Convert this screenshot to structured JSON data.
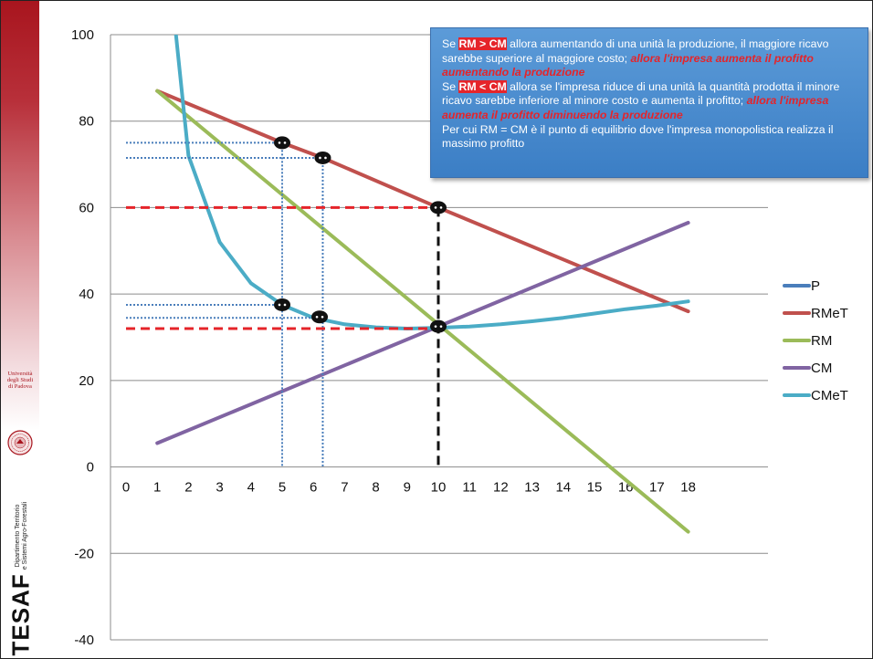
{
  "branding": {
    "university_lines": [
      "Università",
      "degli Studi",
      "di Padova"
    ],
    "department_lines": [
      "Dipartimento Territorio",
      "e Sistemi Agro-Forestali"
    ],
    "logo_text": "TESAF",
    "accent_color": "#a8151e"
  },
  "callout": {
    "p1_a": "Se ",
    "p1_hl": "RM > CM",
    "p1_b": " allora aumentando di una unità la produzione, il maggiore ricavo sarebbe superiore al maggiore costo; ",
    "p1_em": "allora l'impresa aumenta il profitto aumentando la produzione",
    "p2_a": "Se ",
    "p2_hl": "RM < CM",
    "p2_b": " allora se l'impresa riduce di una unità la quantità prodotta il minore ricavo sarebbe inferiore al minore costo e aumenta il profitto; ",
    "p2_em": "allora l'impresa aumenta il profitto diminuendo la produzione",
    "p3": "Per cui RM = CM è il punto di equilibrio dove l'impresa monopolistica realizza il massimo profitto"
  },
  "chart_data": {
    "type": "line",
    "x_ticks": [
      "0",
      "1",
      "2",
      "3",
      "4",
      "5",
      "6",
      "7",
      "8",
      "9",
      "10",
      "11",
      "12",
      "13",
      "14",
      "15",
      "16",
      "17",
      "18"
    ],
    "y_ticks": [
      100,
      80,
      60,
      40,
      20,
      0,
      -20,
      -40
    ],
    "ylim": [
      -40,
      100
    ],
    "grid": true,
    "legend_position": "right",
    "series": [
      {
        "name": "P",
        "color": "#4a7ebb",
        "points": []
      },
      {
        "name": "RMeT",
        "color": "#c0504d",
        "points": [
          [
            1,
            87
          ],
          [
            5,
            75
          ],
          [
            6.3,
            71.5
          ],
          [
            10,
            60
          ],
          [
            18,
            36
          ]
        ]
      },
      {
        "name": "RM",
        "color": "#9bbb59",
        "points": [
          [
            1,
            87
          ],
          [
            10,
            33
          ],
          [
            18,
            -15
          ]
        ]
      },
      {
        "name": "CM",
        "color": "#8064a2",
        "points": [
          [
            1,
            5.5
          ],
          [
            10,
            32.5
          ],
          [
            18,
            56.5
          ]
        ]
      },
      {
        "name": "CMeT",
        "color": "#4bacc6",
        "points": [
          [
            1.6,
            100
          ],
          [
            2,
            72
          ],
          [
            3,
            52
          ],
          [
            4,
            42.5
          ],
          [
            5,
            37.5
          ],
          [
            6,
            34.5
          ],
          [
            7,
            33
          ],
          [
            8,
            32.3
          ],
          [
            9,
            32
          ],
          [
            10,
            32.2
          ],
          [
            11,
            32.5
          ],
          [
            12,
            33
          ],
          [
            13,
            33.7
          ],
          [
            14,
            34.5
          ],
          [
            15,
            35.5
          ],
          [
            16,
            36.5
          ],
          [
            17,
            37.3
          ],
          [
            18,
            38.3
          ]
        ]
      }
    ],
    "markers": [
      [
        5,
        75
      ],
      [
        6.3,
        71.5
      ],
      [
        10,
        60
      ],
      [
        5,
        37.5
      ],
      [
        6.2,
        34.7
      ],
      [
        10,
        32.5
      ]
    ],
    "guide_lines": [
      {
        "style": "dotted",
        "color": "#4a7ebb",
        "from": [
          0,
          75
        ],
        "to": [
          5,
          75
        ]
      },
      {
        "style": "dotted",
        "color": "#4a7ebb",
        "from": [
          0,
          71.5
        ],
        "to": [
          6.3,
          71.5
        ]
      },
      {
        "style": "dotted",
        "color": "#4a7ebb",
        "from": [
          0,
          37.5
        ],
        "to": [
          5,
          37.5
        ]
      },
      {
        "style": "dotted",
        "color": "#4a7ebb",
        "from": [
          0,
          34.5
        ],
        "to": [
          6.2,
          34.5
        ]
      },
      {
        "style": "dotted",
        "color": "#4a7ebb",
        "from": [
          5,
          75
        ],
        "to": [
          5,
          0
        ]
      },
      {
        "style": "dotted",
        "color": "#4a7ebb",
        "from": [
          6.3,
          71.5
        ],
        "to": [
          6.3,
          0
        ]
      },
      {
        "style": "dashed",
        "color": "#e5242a",
        "from": [
          0,
          60
        ],
        "to": [
          10,
          60
        ]
      },
      {
        "style": "dashed",
        "color": "#e5242a",
        "from": [
          0,
          32
        ],
        "to": [
          10,
          32
        ]
      },
      {
        "style": "dashed",
        "color": "#111111",
        "from": [
          10,
          60
        ],
        "to": [
          10,
          0
        ]
      }
    ]
  }
}
